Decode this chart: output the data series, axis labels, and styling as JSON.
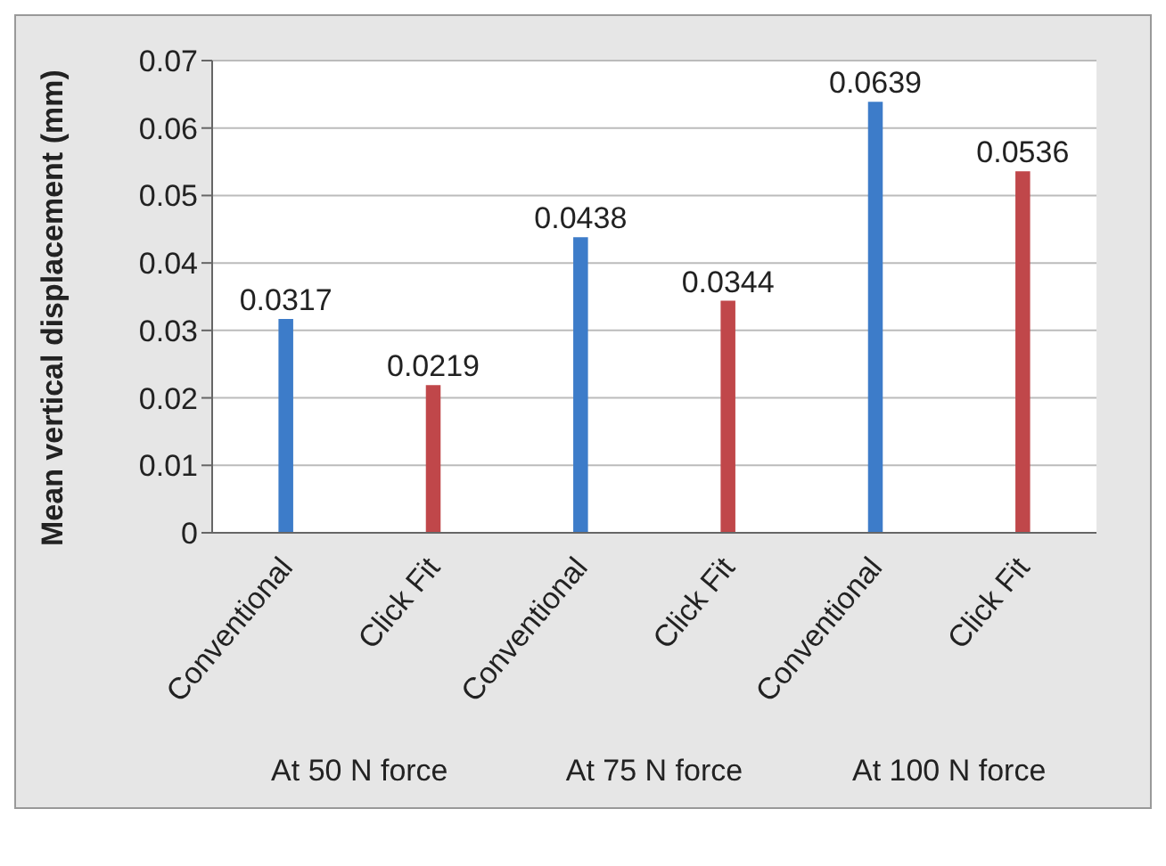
{
  "chart_data": {
    "type": "bar",
    "ylabel": "Mean vertical displacement (mm)",
    "categories": [
      "Conventional",
      "Click Fit",
      "Conventional",
      "Click Fit",
      "Conventional",
      "Click Fit"
    ],
    "values": [
      0.0317,
      0.0219,
      0.0438,
      0.0344,
      0.0639,
      0.0536
    ],
    "colors": [
      "#3d7cc9",
      "#c0474a",
      "#3d7cc9",
      "#c0474a",
      "#3d7cc9",
      "#c0474a"
    ],
    "ylim": [
      0,
      0.07
    ],
    "yticks": [
      0,
      0.01,
      0.02,
      0.03,
      0.04,
      0.05,
      0.06,
      0.07
    ],
    "grid": "y",
    "legend": false,
    "data_labels": true,
    "annotations": [
      "At 50 N force",
      "At 75 N force",
      "At 100 N force"
    ]
  }
}
